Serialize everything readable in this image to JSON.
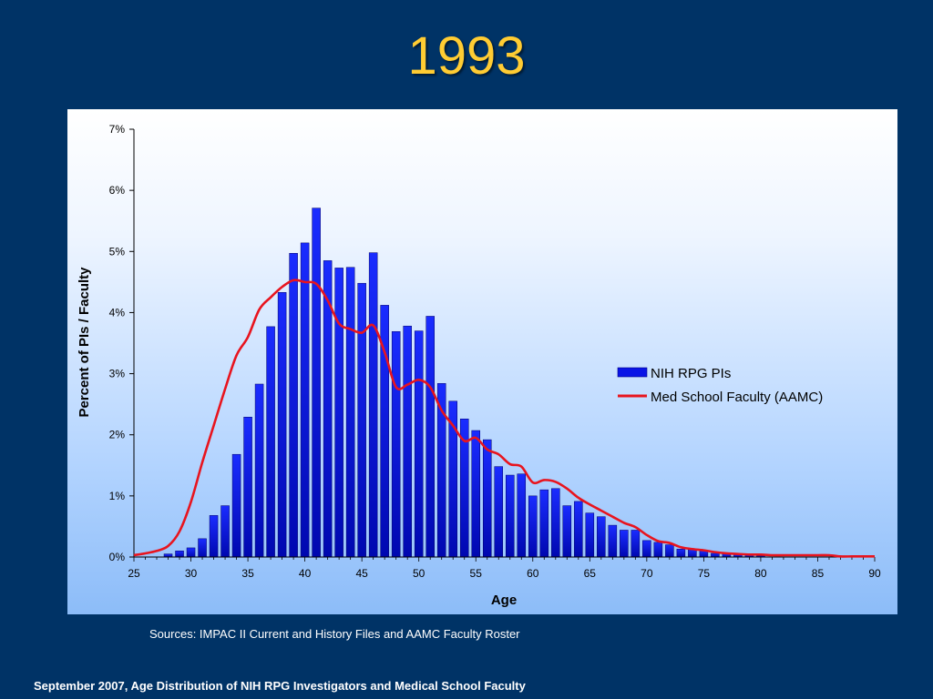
{
  "slide": {
    "title": "1993",
    "sources": "Sources:  IMPAC II Current and History Files and AAMC Faculty Roster",
    "footer": "September 2007, Age Distribution of NIH RPG Investigators and Medical School Faculty"
  },
  "colors": {
    "background": "#003366",
    "title": "#ffcc33",
    "bar": "#0a14e6",
    "line": "#e8141e"
  },
  "chart_data": {
    "type": "bar",
    "title": "",
    "xlabel": "Age",
    "ylabel": "Percent of PIs / Faculty",
    "xlim": [
      25,
      90
    ],
    "ylim": [
      0,
      7
    ],
    "x_ticks": [
      "25",
      "30",
      "35",
      "40",
      "45",
      "50",
      "55",
      "60",
      "65",
      "70",
      "75",
      "80",
      "85",
      "90"
    ],
    "y_ticks": [
      "0%",
      "1%",
      "2%",
      "3%",
      "4%",
      "5%",
      "6%",
      "7%"
    ],
    "grid": false,
    "legend_position": "right",
    "series": [
      {
        "name": "NIH RPG PIs",
        "type": "bar",
        "x": [
          28,
          29,
          30,
          31,
          32,
          33,
          34,
          35,
          36,
          37,
          38,
          39,
          40,
          41,
          42,
          43,
          44,
          45,
          46,
          47,
          48,
          49,
          50,
          51,
          52,
          53,
          54,
          55,
          56,
          57,
          58,
          59,
          60,
          61,
          62,
          63,
          64,
          65,
          66,
          67,
          68,
          69,
          70,
          71,
          72,
          73,
          74,
          75,
          76,
          77,
          78,
          79,
          80
        ],
        "values": [
          0.05,
          0.1,
          0.15,
          0.3,
          0.68,
          0.84,
          1.68,
          2.29,
          2.83,
          3.77,
          4.33,
          4.97,
          5.14,
          5.71,
          4.85,
          4.73,
          4.74,
          4.48,
          4.98,
          4.12,
          3.69,
          3.78,
          3.7,
          3.94,
          2.84,
          2.55,
          2.26,
          2.07,
          1.92,
          1.48,
          1.34,
          1.36,
          1.0,
          1.1,
          1.12,
          0.84,
          0.91,
          0.72,
          0.66,
          0.52,
          0.44,
          0.44,
          0.27,
          0.24,
          0.2,
          0.13,
          0.12,
          0.1,
          0.06,
          0.05,
          0.04,
          0.03,
          0.02
        ]
      },
      {
        "name": "Med School Faculty (AAMC)",
        "type": "line",
        "x": [
          25,
          26,
          27,
          28,
          29,
          30,
          31,
          32,
          33,
          34,
          35,
          36,
          37,
          38,
          39,
          40,
          41,
          42,
          43,
          44,
          45,
          46,
          47,
          48,
          49,
          50,
          51,
          52,
          53,
          54,
          55,
          56,
          57,
          58,
          59,
          60,
          61,
          62,
          63,
          64,
          65,
          66,
          67,
          68,
          69,
          70,
          71,
          72,
          73,
          74,
          75,
          76,
          77,
          78,
          79,
          80,
          81,
          82,
          83,
          84,
          85,
          86,
          87,
          88,
          89,
          90
        ],
        "values": [
          0.03,
          0.06,
          0.1,
          0.18,
          0.42,
          0.9,
          1.55,
          2.15,
          2.75,
          3.3,
          3.6,
          4.05,
          4.25,
          4.42,
          4.53,
          4.5,
          4.47,
          4.2,
          3.82,
          3.73,
          3.67,
          3.79,
          3.35,
          2.78,
          2.82,
          2.9,
          2.78,
          2.4,
          2.15,
          1.9,
          1.95,
          1.76,
          1.68,
          1.52,
          1.48,
          1.22,
          1.26,
          1.23,
          1.12,
          0.97,
          0.86,
          0.76,
          0.66,
          0.56,
          0.49,
          0.36,
          0.26,
          0.23,
          0.16,
          0.13,
          0.11,
          0.08,
          0.06,
          0.05,
          0.04,
          0.04,
          0.03,
          0.03,
          0.03,
          0.03,
          0.03,
          0.03,
          0.01,
          0.01,
          0.01,
          0.01
        ]
      }
    ]
  }
}
